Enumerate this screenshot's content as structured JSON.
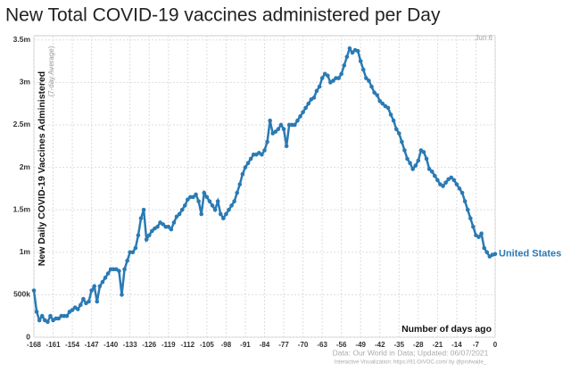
{
  "chart_data": {
    "type": "line",
    "title": "New Total COVID-19 vaccines administered per Day",
    "y_label": "New Daily COVID-19 Vaccines Administered",
    "y_sublabel": "(7-day Average)",
    "x_label": "Number of days ago",
    "annotation": "Jun 6",
    "source": "Data: Our World in Data; Updated: 06/07/2021",
    "credit": "Interactive Visualization: https://91-DIVOC.com/ by @profwade_",
    "grid": true,
    "xlim": [
      -168,
      0
    ],
    "ylim": [
      0,
      3550000
    ],
    "xticks": [
      -168,
      -161,
      -154,
      -147,
      -140,
      -133,
      -126,
      -119,
      -112,
      -105,
      -98,
      -91,
      -84,
      -77,
      -70,
      -63,
      -56,
      -49,
      -42,
      -35,
      -28,
      -21,
      -14,
      -7,
      0
    ],
    "yticks": [
      0,
      {
        "value": 500000,
        "label": "500k"
      },
      {
        "value": 1000000,
        "label": "1m"
      },
      {
        "value": 1500000,
        "label": "1.5m"
      },
      {
        "value": 2000000,
        "label": "2m"
      },
      {
        "value": 2500000,
        "label": "2.5m"
      },
      {
        "value": 3000000,
        "label": "3m"
      },
      {
        "value": 3500000,
        "label": "3.5m"
      }
    ],
    "x": [
      -168,
      -167,
      -166,
      -165,
      -164,
      -163,
      -162,
      -161,
      -160,
      -159,
      -158,
      -157,
      -156,
      -155,
      -154,
      -153,
      -152,
      -151,
      -150,
      -149,
      -148,
      -147,
      -146,
      -145,
      -144,
      -143,
      -142,
      -141,
      -140,
      -139,
      -138,
      -137,
      -136,
      -135,
      -134,
      -133,
      -132,
      -131,
      -130,
      -129,
      -128,
      -127,
      -126,
      -125,
      -124,
      -123,
      -122,
      -121,
      -120,
      -119,
      -118,
      -117,
      -116,
      -115,
      -114,
      -113,
      -112,
      -111,
      -110,
      -109,
      -108,
      -107,
      -106,
      -105,
      -104,
      -103,
      -102,
      -101,
      -100,
      -99,
      -98,
      -97,
      -96,
      -95,
      -94,
      -93,
      -92,
      -91,
      -90,
      -89,
      -88,
      -87,
      -86,
      -85,
      -84,
      -83,
      -82,
      -81,
      -80,
      -79,
      -78,
      -77,
      -76,
      -75,
      -74,
      -73,
      -72,
      -71,
      -70,
      -69,
      -68,
      -67,
      -66,
      -65,
      -64,
      -63,
      -62,
      -61,
      -60,
      -59,
      -58,
      -57,
      -56,
      -55,
      -54,
      -53,
      -52,
      -51,
      -50,
      -49,
      -48,
      -47,
      -46,
      -45,
      -44,
      -43,
      -42,
      -41,
      -40,
      -39,
      -38,
      -37,
      -36,
      -35,
      -34,
      -33,
      -32,
      -31,
      -30,
      -29,
      -28,
      -27,
      -26,
      -25,
      -24,
      -23,
      -22,
      -21,
      -20,
      -19,
      -18,
      -17,
      -16,
      -15,
      -14,
      -13,
      -12,
      -11,
      -10,
      -9,
      -8,
      -7,
      -6,
      -5,
      -4,
      -3,
      -2,
      -1,
      0
    ],
    "series": [
      {
        "name": "United States",
        "color": "#2a7ab4",
        "values": [
          550000,
          300000,
          200000,
          250000,
          200000,
          180000,
          250000,
          200000,
          220000,
          220000,
          250000,
          250000,
          250000,
          300000,
          320000,
          350000,
          330000,
          380000,
          450000,
          400000,
          420000,
          550000,
          600000,
          420000,
          600000,
          650000,
          700000,
          750000,
          800000,
          800000,
          800000,
          780000,
          500000,
          800000,
          900000,
          1000000,
          1000000,
          1050000,
          1200000,
          1400000,
          1500000,
          1150000,
          1200000,
          1250000,
          1280000,
          1300000,
          1350000,
          1330000,
          1300000,
          1300000,
          1270000,
          1350000,
          1420000,
          1450000,
          1500000,
          1550000,
          1620000,
          1650000,
          1650000,
          1680000,
          1600000,
          1450000,
          1700000,
          1650000,
          1600000,
          1550000,
          1500000,
          1600000,
          1450000,
          1400000,
          1450000,
          1500000,
          1550000,
          1600000,
          1700000,
          1800000,
          1920000,
          2000000,
          2050000,
          2100000,
          2150000,
          2150000,
          2170000,
          2150000,
          2200000,
          2300000,
          2550000,
          2400000,
          2420000,
          2450000,
          2500000,
          2450000,
          2250000,
          2500000,
          2500000,
          2500000,
          2550000,
          2600000,
          2650000,
          2700000,
          2750000,
          2800000,
          2820000,
          2900000,
          2950000,
          3050000,
          3100000,
          3080000,
          3000000,
          3020000,
          3050000,
          3050000,
          3100000,
          3200000,
          3300000,
          3400000,
          3350000,
          3380000,
          3370000,
          3250000,
          3150000,
          3050000,
          3020000,
          2950000,
          2880000,
          2850000,
          2780000,
          2750000,
          2720000,
          2700000,
          2620000,
          2550000,
          2450000,
          2400000,
          2300000,
          2200000,
          2100000,
          2050000,
          1980000,
          2020000,
          2080000,
          2200000,
          2180000,
          2100000,
          1980000,
          1950000,
          1900000,
          1850000,
          1800000,
          1780000,
          1820000,
          1860000,
          1880000,
          1850000,
          1800000,
          1750000,
          1700000,
          1600000,
          1500000,
          1400000,
          1300000,
          1200000,
          1180000,
          1220000,
          1050000,
          1000000,
          950000,
          970000,
          980000
        ]
      }
    ]
  }
}
